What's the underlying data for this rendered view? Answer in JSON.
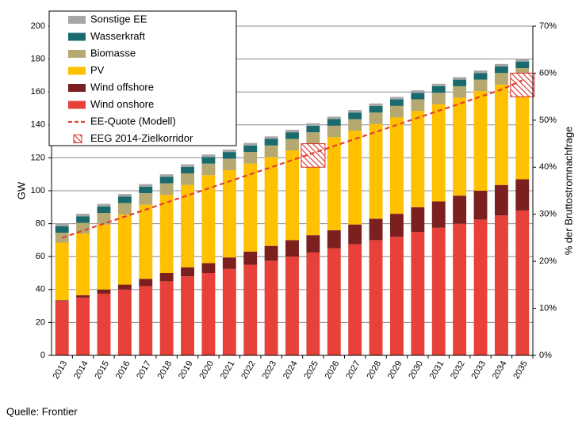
{
  "chart_data": {
    "type": "stacked-bar-line",
    "categories": [
      "2013",
      "2014",
      "2015",
      "2016",
      "2017",
      "2018",
      "2019",
      "2020",
      "2021",
      "2022",
      "2023",
      "2024",
      "2025",
      "2026",
      "2027",
      "2028",
      "2029",
      "2030",
      "2031",
      "2032",
      "2033",
      "2034",
      "2035"
    ],
    "series": [
      {
        "name": "Wind onshore",
        "color": "#e8413a",
        "values": [
          33,
          35,
          37.5,
          40,
          42,
          45,
          48,
          50,
          52.5,
          55,
          57.5,
          60,
          62.5,
          65,
          67.5,
          70,
          72,
          75,
          77.5,
          80,
          82.5,
          85,
          88
        ]
      },
      {
        "name": "Wind offshore",
        "color": "#7b1f1f",
        "values": [
          0.5,
          1.5,
          2.5,
          3,
          4.5,
          5,
          5.5,
          6,
          7,
          8,
          9,
          10,
          10.5,
          11,
          12,
          13,
          14,
          15,
          16,
          17,
          17.5,
          18.5,
          19
        ]
      },
      {
        "name": "PV",
        "color": "#ffc000",
        "values": [
          35,
          37.5,
          39.5,
          42.5,
          45,
          47.5,
          50,
          53.5,
          53,
          53.5,
          54,
          54.5,
          55.5,
          56.5,
          57,
          57.5,
          58.5,
          58.5,
          59,
          59.5,
          60.5,
          61,
          60.5
        ]
      },
      {
        "name": "Biomasse",
        "color": "#b5a870",
        "values": [
          6,
          6.5,
          7,
          7,
          7,
          7,
          7,
          7,
          7,
          7,
          7,
          7,
          7,
          7,
          7,
          7,
          7,
          7,
          7,
          7,
          7,
          7,
          7
        ]
      },
      {
        "name": "Wasserkraft",
        "color": "#1a6a6e",
        "values": [
          4,
          4,
          4,
          4,
          4,
          4,
          4,
          4,
          4,
          4,
          4,
          4,
          4,
          4,
          4,
          4,
          4,
          4,
          4,
          4,
          4,
          4,
          4
        ]
      },
      {
        "name": "Sonstige EE",
        "color": "#a6a6a6",
        "values": [
          1.5,
          1.5,
          1.5,
          1.5,
          1.5,
          1.5,
          1.5,
          1.5,
          1.5,
          1.5,
          1.5,
          1.5,
          1.5,
          1.5,
          1.5,
          1.5,
          1.5,
          1.5,
          1.5,
          1.5,
          1.5,
          1.5,
          1.5
        ]
      },
      {
        "name": "EE-Quote (Modell)",
        "color": "#e0403a",
        "axis": "y2",
        "style": "dashed",
        "values": [
          25,
          26.5,
          28,
          29.5,
          31,
          32.5,
          34,
          35.5,
          37,
          38.5,
          40,
          41.5,
          43,
          44.5,
          46,
          47.5,
          49,
          50.5,
          52,
          53.5,
          55,
          56.5,
          58.5
        ]
      }
    ],
    "corridor": {
      "name": "EEG 2014-Zielkorridor",
      "color": "#d9312b",
      "categories": [
        "2025",
        "2035"
      ],
      "low": [
        40,
        55
      ],
      "high": [
        45,
        60
      ]
    },
    "ylabel": "GW",
    "y2label": "% der Bruttostromnachfrage",
    "ylim": [
      0,
      200
    ],
    "yticks": [
      0,
      20,
      40,
      60,
      80,
      100,
      120,
      140,
      160,
      180,
      200
    ],
    "y2lim": [
      0,
      70
    ],
    "y2ticks": [
      {
        "value": 0,
        "label": "0%"
      },
      {
        "value": 10,
        "label": "10%"
      },
      {
        "value": 20,
        "label": "20%"
      },
      {
        "value": 30,
        "label": "30%"
      },
      {
        "value": 40,
        "label": "40%"
      },
      {
        "value": 50,
        "label": "50%"
      },
      {
        "value": 60,
        "label": "60%"
      },
      {
        "value": 70,
        "label": "70%"
      }
    ],
    "grid": true,
    "legend": "top-left",
    "source": "Quelle: Frontier"
  }
}
